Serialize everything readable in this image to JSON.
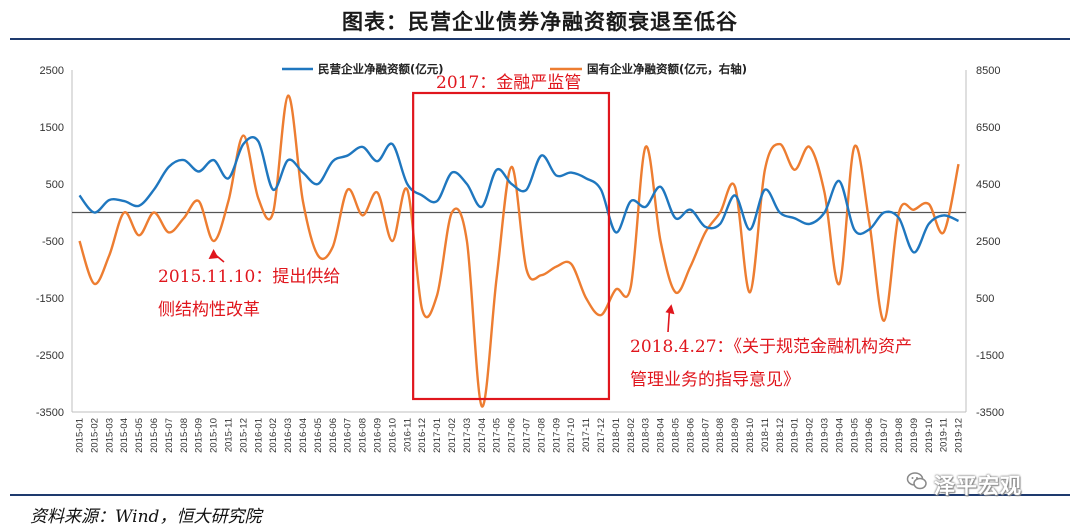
{
  "title": "图表：民营企业债券净融资额衰退至低谷",
  "source": "资料来源：Wind，恒大研究院",
  "watermark": "泽平宏观",
  "colors": {
    "private": "#1f77bf",
    "state": "#ed7d31",
    "annotation": "#e0161d",
    "rule": "#1e3a6e"
  },
  "chart_data": {
    "type": "line",
    "x": [
      "2015-01",
      "2015-02",
      "2015-03",
      "2015-04",
      "2015-05",
      "2015-06",
      "2015-07",
      "2015-08",
      "2015-09",
      "2015-10",
      "2015-11",
      "2015-12",
      "2016-01",
      "2016-02",
      "2016-03",
      "2016-04",
      "2016-05",
      "2016-06",
      "2016-07",
      "2016-08",
      "2016-09",
      "2016-10",
      "2016-11",
      "2016-12",
      "2017-01",
      "2017-02",
      "2017-03",
      "2017-04",
      "2017-05",
      "2017-06",
      "2017-07",
      "2017-08",
      "2017-09",
      "2017-10",
      "2017-11",
      "2017-12",
      "2018-01",
      "2018-02",
      "2018-03",
      "2018-04",
      "2018-05",
      "2018-06",
      "2018-07",
      "2018-08",
      "2018-09",
      "2018-10",
      "2018-11",
      "2018-12",
      "2019-01",
      "2019-02",
      "2019-03",
      "2019-04",
      "2019-05",
      "2019-06",
      "2019-07",
      "2019-08",
      "2019-09",
      "2019-10",
      "2019-11",
      "2019-12"
    ],
    "yleft_ticks": [
      2500,
      1500,
      500,
      -500,
      -1500,
      -2500,
      -3500
    ],
    "yright_ticks": [
      8500,
      6500,
      4500,
      2500,
      500,
      -1500,
      -3500
    ],
    "ylim_left": [
      -3500,
      2500
    ],
    "ylim_right": [
      -3500,
      8500
    ],
    "series": [
      {
        "name": "民营企业净融资额(亿元)",
        "axis": "left",
        "values": [
          300,
          0,
          220,
          200,
          120,
          400,
          800,
          920,
          720,
          920,
          600,
          1200,
          1250,
          400,
          920,
          700,
          500,
          900,
          1000,
          1150,
          900,
          1200,
          500,
          300,
          200,
          700,
          500,
          100,
          750,
          500,
          400,
          1000,
          650,
          700,
          600,
          400,
          -350,
          200,
          100,
          450,
          -100,
          50,
          -250,
          -200,
          300,
          -300,
          400,
          0,
          -100,
          -200,
          0,
          550,
          -300,
          -300,
          0,
          -100,
          -700,
          -200,
          -50,
          -150
        ]
      },
      {
        "name": "国有企业净融资额(亿元，右轴)",
        "axis": "right",
        "values": [
          2500,
          1000,
          2000,
          3500,
          2700,
          3500,
          2800,
          3300,
          3900,
          2500,
          3900,
          6200,
          4000,
          3500,
          7600,
          3900,
          2000,
          2300,
          4300,
          3400,
          4200,
          2500,
          4300,
          100,
          600,
          3500,
          2500,
          -3300,
          1200,
          5100,
          1500,
          1300,
          1600,
          1700,
          500,
          -100,
          800,
          900,
          5800,
          2500,
          700,
          1600,
          2800,
          3500,
          4400,
          700,
          5000,
          5900,
          5000,
          5800,
          4200,
          1000,
          5800,
          3200,
          -300,
          3500,
          3600,
          3800,
          2800,
          5200
        ]
      }
    ],
    "annotations": [
      {
        "text": "2017：金融严监管"
      },
      {
        "text": "2015.11.10：提出供给",
        "text2": "侧结构性改革"
      },
      {
        "text": "2018.4.27：《关于规范金融机构资产",
        "text2": "管理业务的指导意见》"
      }
    ],
    "grid": false,
    "legend": "top-center"
  }
}
